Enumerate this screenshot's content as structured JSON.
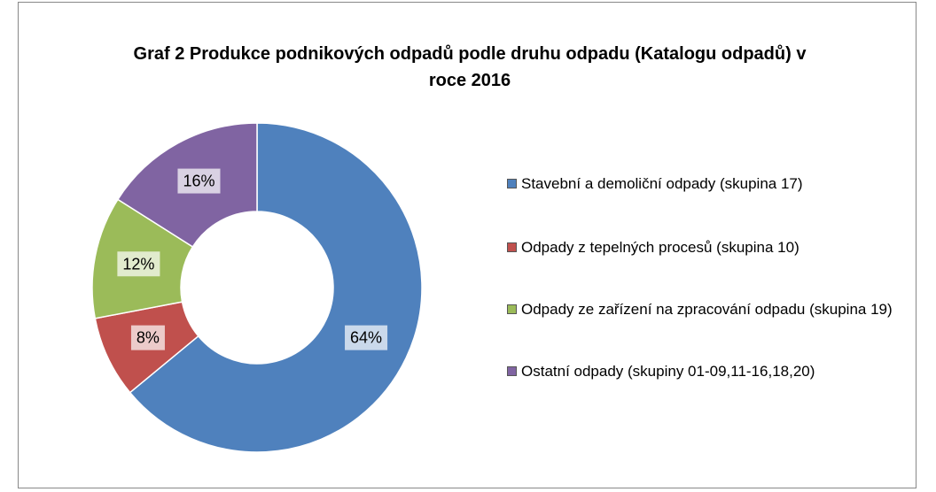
{
  "chart_data": {
    "type": "donut",
    "title": "Graf 2 Produkce podnikových odpadů podle druhu odpadu (Katalogu odpadů) v roce 2016",
    "categories": [
      "Stavební a demoliční odpady (skupina 17)",
      "Odpady z tepelných procesů (skupina 10)",
      "Odpady ze zařízení na zpracování odpadu (skupina 19)",
      "Ostatní odpady  (skupiny 01-09,11-16,18,20)"
    ],
    "values": [
      64,
      8,
      12,
      16
    ],
    "value_labels": [
      "64%",
      "8%",
      "12%",
      "16%"
    ],
    "colors": [
      "#4f81bd",
      "#c0504d",
      "#9bbb59",
      "#8064a2"
    ],
    "legend": "right"
  }
}
